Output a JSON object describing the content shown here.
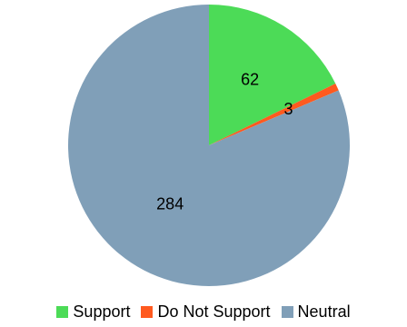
{
  "chart_data": {
    "type": "pie",
    "title": "",
    "legend_position": "bottom",
    "slices": [
      {
        "label": "Support",
        "value": 62,
        "color": "#4cdb57"
      },
      {
        "label": "Do Not Support",
        "value": 3,
        "color": "#ff5a1f"
      },
      {
        "label": "Neutral",
        "value": 284,
        "color": "#809fb8"
      }
    ]
  }
}
